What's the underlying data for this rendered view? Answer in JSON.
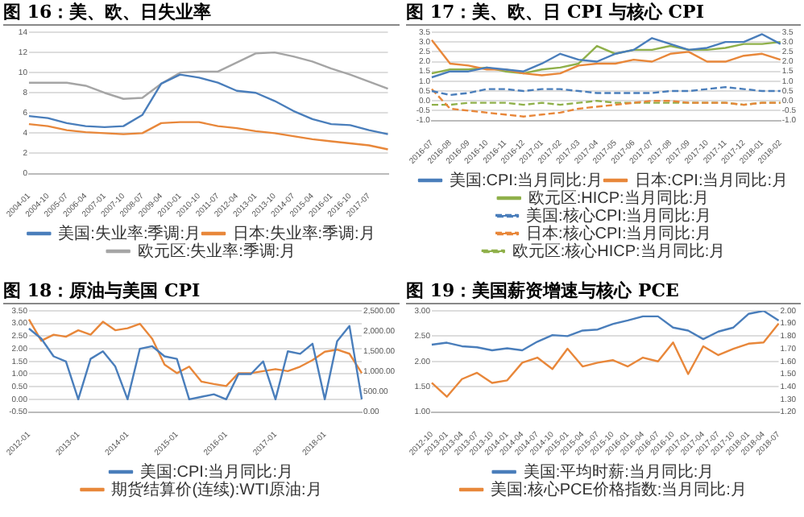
{
  "chart_data": [
    {
      "type": "line",
      "title": "图 16：美、欧、日失业率",
      "categories": [
        "2004-01",
        "2004-10",
        "2005-07",
        "2006-04",
        "2007-01",
        "2007-10",
        "2008-07",
        "2009-04",
        "2010-01",
        "2010-10",
        "2011-07",
        "2012-04",
        "2013-01",
        "2013-10",
        "2014-07",
        "2015-04",
        "2016-01",
        "2016-10",
        "2017-07",
        null
      ],
      "series": [
        {
          "name": "美国:失业率:季调:月",
          "color": "#4a7ebb",
          "values": [
            5.7,
            5.5,
            5.0,
            4.7,
            4.6,
            4.7,
            5.8,
            8.9,
            9.8,
            9.5,
            9.0,
            8.2,
            8.0,
            7.2,
            6.2,
            5.4,
            4.9,
            4.8,
            4.3,
            3.9
          ]
        },
        {
          "name": "日本:失业率:季调:月",
          "color": "#e8873a",
          "values": [
            4.9,
            4.7,
            4.3,
            4.1,
            4.0,
            3.9,
            4.0,
            5.0,
            5.1,
            5.1,
            4.7,
            4.5,
            4.2,
            4.0,
            3.7,
            3.4,
            3.2,
            3.0,
            2.8,
            2.4
          ]
        },
        {
          "name": "欧元区:失业率:季调:月",
          "color": "#a5a5a5",
          "values": [
            9.0,
            9.0,
            9.0,
            8.7,
            8.0,
            7.4,
            7.5,
            8.9,
            10.0,
            10.1,
            10.1,
            11.0,
            11.9,
            12.0,
            11.6,
            11.1,
            10.4,
            9.8,
            9.1,
            8.4
          ]
        }
      ],
      "ylim": [
        0,
        14
      ],
      "yticks": [
        0,
        2,
        4,
        6,
        8,
        10,
        12,
        14
      ],
      "grid": "y",
      "legend": "bottom",
      "marker": "none",
      "line_style": "solid"
    },
    {
      "type": "line",
      "title": "图 17：美、欧、日 CPI 与核心 CPI",
      "categories": [
        "2016-07",
        "2016-08",
        "2016-09",
        "2016-10",
        "2016-11",
        "2016-12",
        "2017-01",
        "2017-02",
        "2017-03",
        "2017-04",
        "2017-05",
        "2017-06",
        "2017-07",
        "2017-08",
        "2017-09",
        "2017-10",
        "2017-11",
        "2017-12",
        "2018-01",
        "2018-02"
      ],
      "series": [
        {
          "name": "美国:CPI:当月同比:月",
          "color": "#4a7ebb",
          "values": [
            1.2,
            1.5,
            1.5,
            1.7,
            1.6,
            1.5,
            1.9,
            2.4,
            2.1,
            2.0,
            2.4,
            2.6,
            3.2,
            2.9,
            2.6,
            2.7,
            3.0,
            3.0,
            3.4,
            2.9
          ]
        },
        {
          "name": "日本:CPI:当月同比:月",
          "color": "#e8873a",
          "axis": "y2",
          "values": [
            3.1,
            1.9,
            1.8,
            1.6,
            1.6,
            1.4,
            1.3,
            1.4,
            1.8,
            1.9,
            1.9,
            2.1,
            2.0,
            2.4,
            2.5,
            2.0,
            2.0,
            2.3,
            2.4,
            2.1
          ]
        },
        {
          "name": "欧元区:HICP:当月同比:月",
          "color": "#8fb04a",
          "values": [
            1.4,
            1.6,
            1.6,
            1.7,
            1.5,
            1.4,
            1.6,
            1.7,
            1.9,
            2.8,
            2.4,
            2.6,
            2.6,
            2.8,
            2.6,
            2.6,
            2.7,
            2.9,
            2.9,
            3.0
          ]
        },
        {
          "name": "美国:核心CPI:当月同比:月",
          "color": "#4a7ebb",
          "line_style": "dashed",
          "values": [
            0.5,
            0.3,
            0.4,
            0.6,
            0.6,
            0.5,
            0.6,
            0.6,
            0.5,
            0.4,
            0.4,
            0.4,
            0.4,
            0.5,
            0.5,
            0.6,
            0.7,
            0.6,
            0.5,
            0.5
          ]
        },
        {
          "name": "日本:核心CPI:当月同比:月",
          "color": "#e8873a",
          "line_style": "dashed",
          "axis": "y2",
          "values": [
            0.6,
            -0.4,
            -0.5,
            -0.6,
            -0.7,
            -0.8,
            -0.7,
            -0.6,
            -0.4,
            -0.3,
            -0.2,
            -0.1,
            0.0,
            0.0,
            -0.1,
            -0.1,
            -0.1,
            -0.2,
            -0.1,
            -0.1
          ]
        },
        {
          "name": "欧元区:核心HICP:当月同比:月",
          "color": "#8fb04a",
          "line_style": "dashed",
          "values": [
            -0.2,
            -0.2,
            -0.1,
            -0.1,
            -0.1,
            -0.2,
            -0.1,
            -0.2,
            -0.1,
            0.0,
            -0.1,
            -0.1,
            -0.1,
            -0.1,
            -0.1,
            -0.1,
            -0.1,
            -0.2,
            -0.1,
            -0.1
          ]
        }
      ],
      "ylim": [
        -1,
        3.5
      ],
      "yticks": [
        {
          "value": -1,
          "label": "-1.0"
        },
        {
          "value": -0.5,
          "label": "-0.5"
        },
        {
          "value": 0,
          "label": "0.0"
        },
        {
          "value": 0.5,
          "label": "0.5"
        },
        {
          "value": 1,
          "label": "1.0"
        },
        {
          "value": 1.5,
          "label": "1.5"
        },
        {
          "value": 2,
          "label": "2.0"
        },
        {
          "value": 2.5,
          "label": "2.5"
        },
        {
          "value": 3,
          "label": "3.0"
        },
        {
          "value": 3.5,
          "label": "3.5"
        }
      ],
      "y2lim": [
        -1,
        3.5
      ],
      "y2ticks": [
        {
          "value": -1,
          "label": "-1.0"
        },
        {
          "value": -0.5,
          "label": "-0.5"
        },
        {
          "value": 0,
          "label": "0.0"
        },
        {
          "value": 0.5,
          "label": "0.5"
        },
        {
          "value": 1,
          "label": "1.0"
        },
        {
          "value": 1.5,
          "label": "1.5"
        },
        {
          "value": 2,
          "label": "2.0"
        },
        {
          "value": 2.5,
          "label": "2.5"
        },
        {
          "value": 3,
          "label": "3.0"
        },
        {
          "value": 3.5,
          "label": "3.5"
        }
      ],
      "grid": "y",
      "legend": "bottom",
      "marker": "none",
      "line_style": "solid"
    },
    {
      "type": "line",
      "title": "图 18：原油与美国 CPI",
      "categories": [
        "2012-01",
        null,
        null,
        null,
        "2013-01",
        null,
        null,
        null,
        "2014-01",
        null,
        null,
        null,
        "2015-01",
        null,
        null,
        null,
        "2016-01",
        null,
        null,
        null,
        "2017-01",
        null,
        null,
        null,
        "2018-01",
        null,
        null,
        null
      ],
      "series": [
        {
          "name": "美国:CPI:当月同比:月",
          "color": "#4a7ebb",
          "values": [
            2.8,
            2.4,
            1.7,
            1.5,
            0.0,
            1.6,
            1.9,
            1.3,
            0.0,
            2.0,
            2.1,
            1.7,
            1.6,
            0.0,
            0.1,
            0.2,
            0.0,
            1.0,
            1.0,
            1.5,
            0.0,
            1.9,
            1.8,
            2.2,
            0.0,
            2.3,
            2.9,
            0.0
          ]
        },
        {
          "name": "期货结算价(连续):WTI原油:月",
          "color": "#e8873a",
          "axis": "y2",
          "values": [
            2290,
            1760,
            1910,
            1860,
            2020,
            1910,
            2230,
            2020,
            2070,
            2180,
            1810,
            1170,
            960,
            1120,
            750,
            690,
            640,
            960,
            960,
            1010,
            1060,
            1010,
            1120,
            1280,
            1490,
            1540,
            1440,
            960
          ]
        }
      ],
      "ylim": [
        -0.5,
        3.5
      ],
      "yticks": [
        {
          "value": -0.5,
          "label": "-0.50"
        },
        {
          "value": 0,
          "label": "0.00"
        },
        {
          "value": 0.5,
          "label": "0.50"
        },
        {
          "value": 1,
          "label": "1.00"
        },
        {
          "value": 1.5,
          "label": "1.50"
        },
        {
          "value": 2,
          "label": "2.00"
        },
        {
          "value": 2.5,
          "label": "2.50"
        },
        {
          "value": 3,
          "label": "3.00"
        },
        {
          "value": 3.5,
          "label": "3.50"
        }
      ],
      "y2lim": [
        0,
        2500
      ],
      "y2ticks": [
        {
          "value": 0,
          "label": "0.00"
        },
        {
          "value": 500,
          "label": "500.00"
        },
        {
          "value": 1000,
          "label": "1,000.00"
        },
        {
          "value": 1500,
          "label": "1,500.00"
        },
        {
          "value": 2000,
          "label": "2,000.00"
        },
        {
          "value": 2500,
          "label": "2,500.00"
        }
      ],
      "grid": "y",
      "legend": "bottom",
      "marker": "none",
      "line_style": "solid"
    },
    {
      "type": "line",
      "title": "图 19：美国薪资增速与核心 PCE",
      "categories": [
        "2012-10",
        "2013-01",
        "2013-04",
        "2013-07",
        "2013-10",
        "2014-01",
        "2014-04",
        "2014-07",
        "2014-10",
        "2015-01",
        "2015-04",
        "2015-07",
        "2015-10",
        "2016-01",
        "2016-04",
        "2016-07",
        "2016-10",
        "2017-01",
        "2017-04",
        "2017-07",
        "2017-10",
        "2018-01",
        "2018-04",
        "2018-07"
      ],
      "series": [
        {
          "name": "美国:平均时薪:当月同比:月",
          "color": "#4a7ebb",
          "values": [
            2.33,
            2.37,
            2.3,
            2.28,
            2.22,
            2.26,
            2.22,
            2.39,
            2.52,
            2.5,
            2.61,
            2.63,
            2.74,
            2.81,
            2.89,
            2.89,
            2.67,
            2.61,
            2.44,
            2.59,
            2.67,
            2.94,
            3.0,
            2.81
          ]
        },
        {
          "name": "美国:核心PCE价格指数:当月同比:月",
          "color": "#e8873a",
          "axis": "y2",
          "values": [
            1.43,
            1.32,
            1.46,
            1.51,
            1.43,
            1.45,
            1.59,
            1.63,
            1.54,
            1.7,
            1.56,
            1.59,
            1.61,
            1.56,
            1.63,
            1.6,
            1.75,
            1.5,
            1.72,
            1.65,
            1.7,
            1.74,
            1.75,
            1.9
          ]
        }
      ],
      "ylim": [
        1,
        3
      ],
      "yticks": [
        {
          "value": 1,
          "label": "1.00"
        },
        {
          "value": 1.5,
          "label": "1.50"
        },
        {
          "value": 2,
          "label": "2.00"
        },
        {
          "value": 2.5,
          "label": "2.50"
        },
        {
          "value": 3,
          "label": "3.00"
        }
      ],
      "y2lim": [
        1.2,
        2
      ],
      "y2ticks": [
        {
          "value": 1.2,
          "label": "1.20"
        },
        {
          "value": 1.3,
          "label": "1.30"
        },
        {
          "value": 1.4,
          "label": "1.40"
        },
        {
          "value": 1.5,
          "label": "1.50"
        },
        {
          "value": 1.6,
          "label": "1.60"
        },
        {
          "value": 1.7,
          "label": "1.70"
        },
        {
          "value": 1.8,
          "label": "1.80"
        },
        {
          "value": 1.9,
          "label": "1.90"
        },
        {
          "value": 2,
          "label": "2.00"
        }
      ],
      "grid": "y",
      "legend": "bottom",
      "marker": "none",
      "line_style": "solid"
    }
  ]
}
